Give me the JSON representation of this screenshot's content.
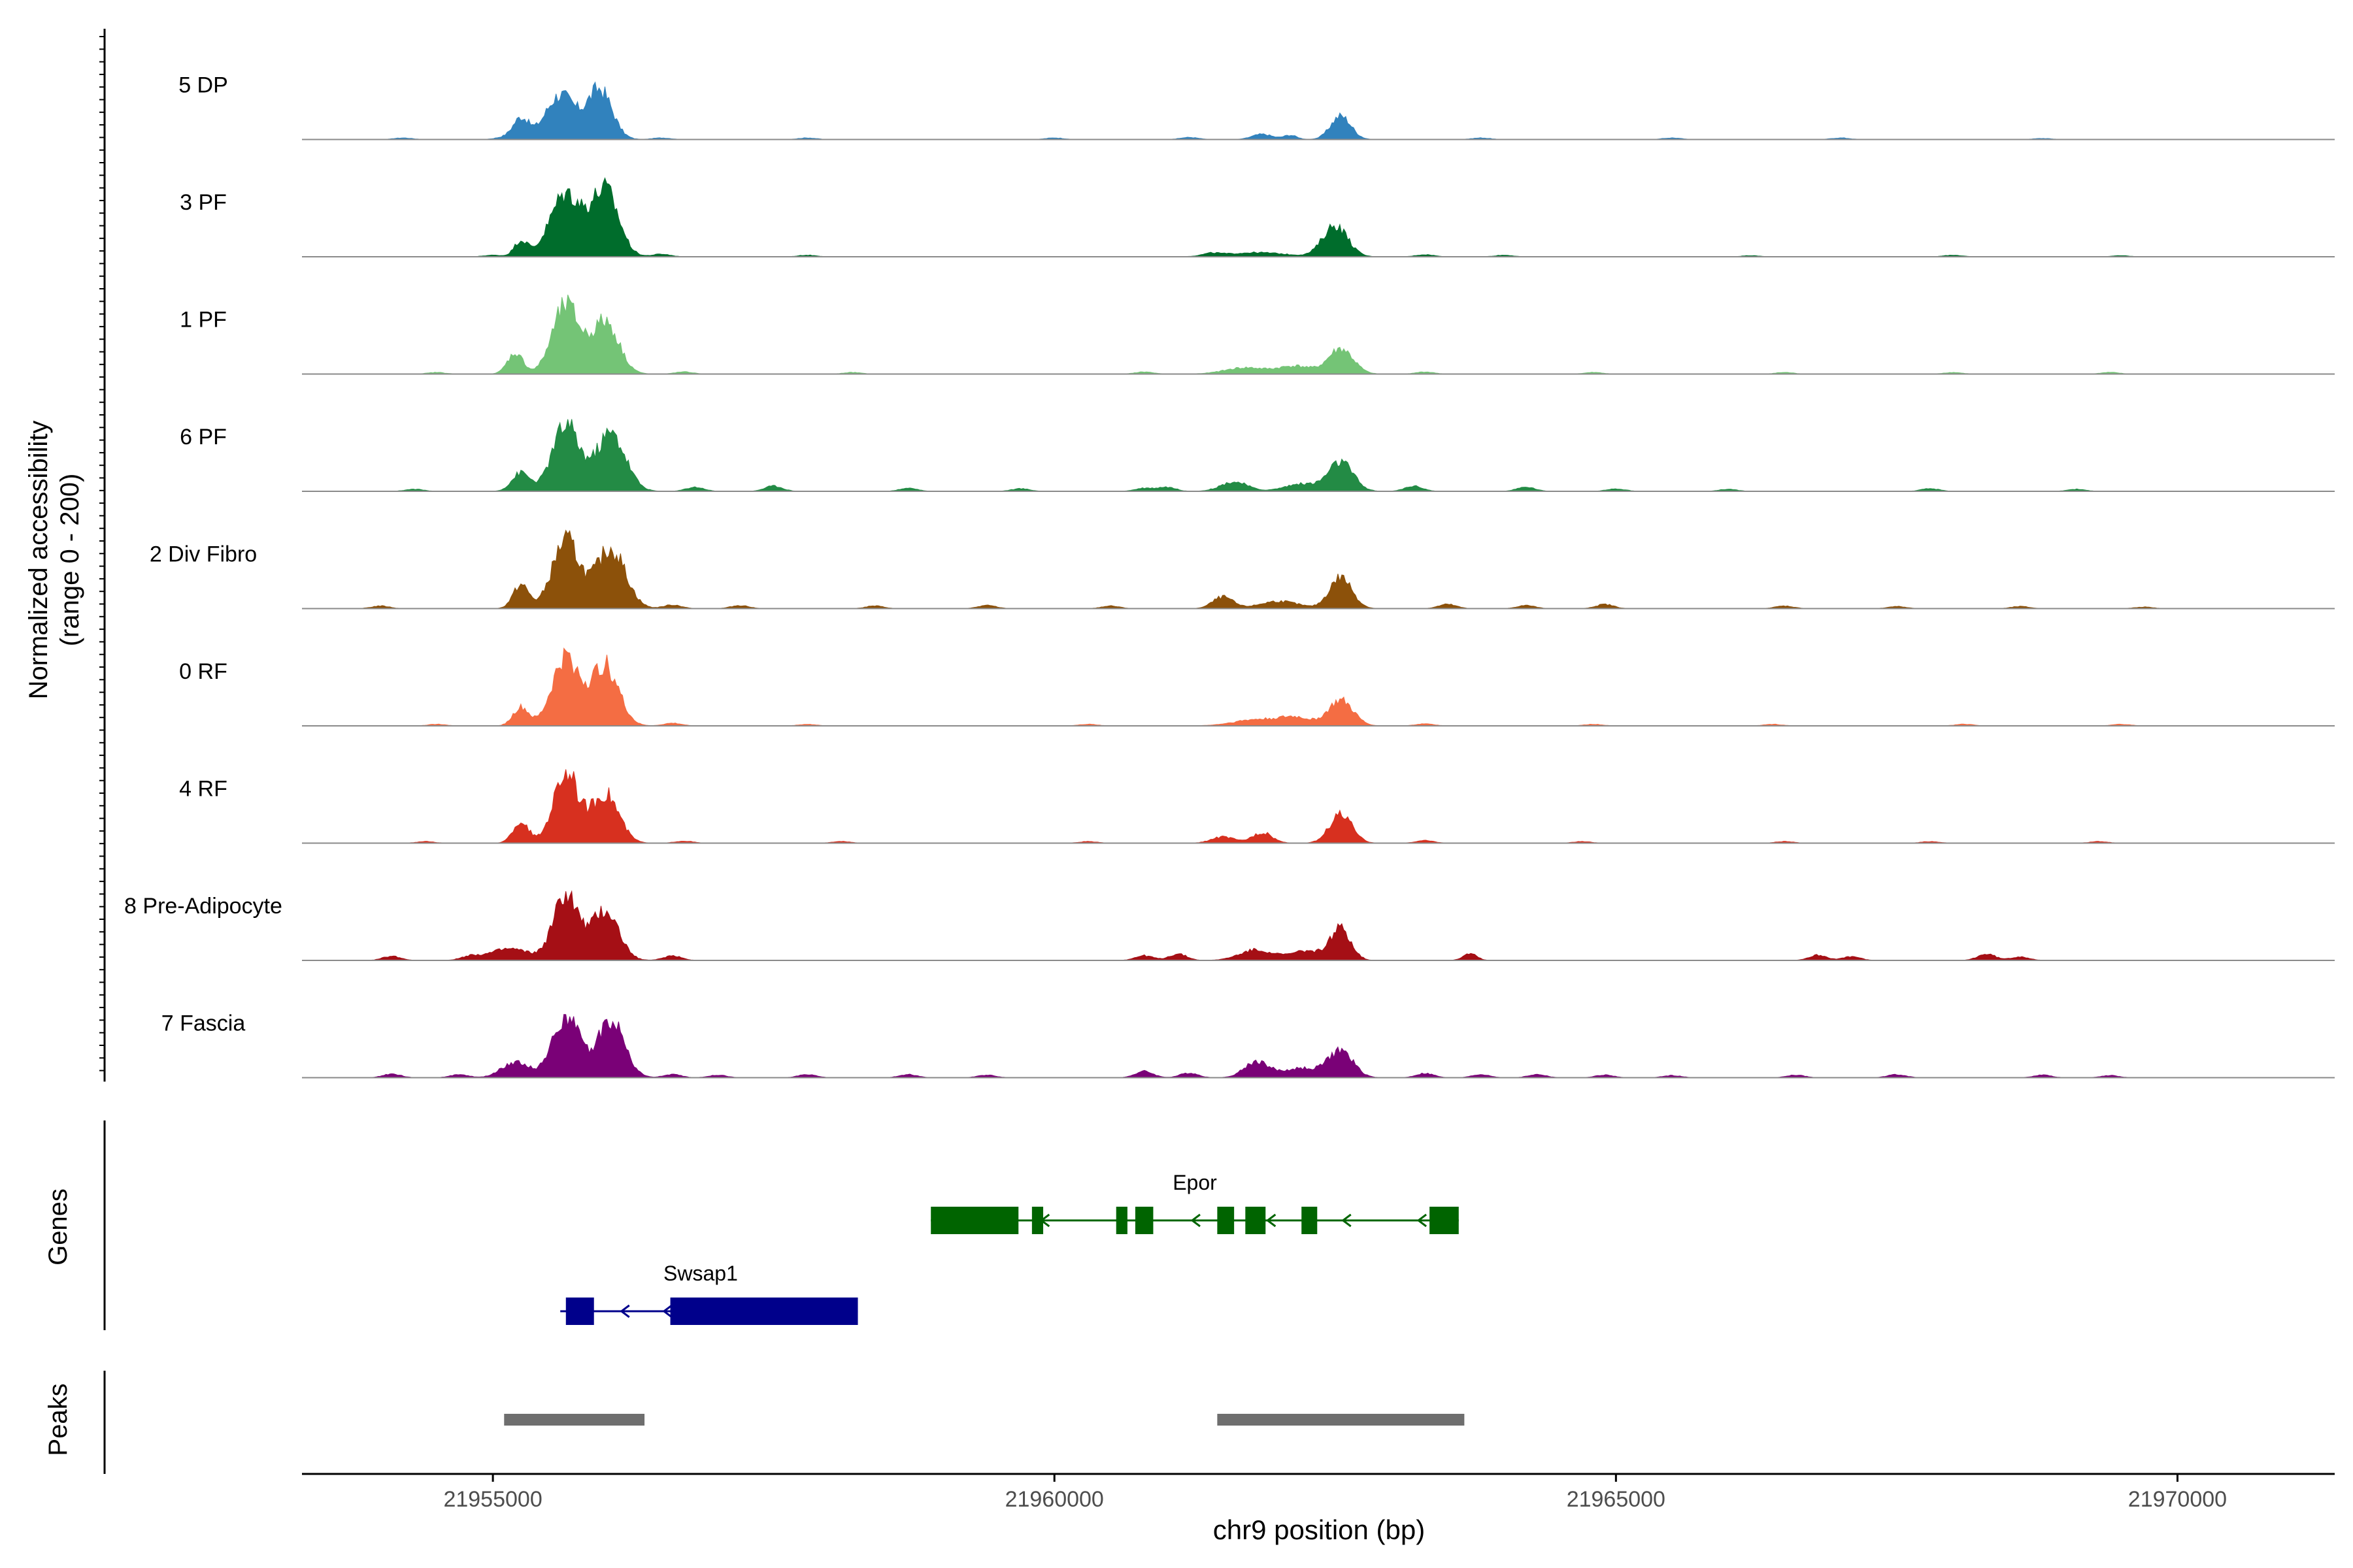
{
  "chart_data": {
    "type": "area",
    "title": "",
    "ylabel_line1": "Normalized accessibility",
    "ylabel_line2": "(range 0 - 200)",
    "xlabel": "chr9 position (bp)",
    "xlim": [
      21953300,
      21971400
    ],
    "xticks": [
      21955000,
      21960000,
      21965000,
      21970000
    ],
    "xtick_labels": [
      "21955000",
      "21960000",
      "21965000",
      "21970000"
    ],
    "ylim": [
      0,
      200
    ],
    "tracks": [
      {
        "name": "5 DP",
        "color": "#3182bd",
        "peaks": [
          [
            21955250,
            40,
            70
          ],
          [
            21955600,
            85,
            130
          ],
          [
            21955950,
            95,
            110
          ],
          [
            21961850,
            10,
            90
          ],
          [
            21962100,
            8,
            60
          ],
          [
            21962550,
            45,
            90
          ]
        ],
        "bumps": [
          [
            21954200,
            3
          ],
          [
            21955100,
            4
          ],
          [
            21956500,
            3
          ],
          [
            21957800,
            3
          ],
          [
            21960000,
            3
          ],
          [
            21961200,
            4
          ],
          [
            21963800,
            3
          ],
          [
            21965500,
            3
          ],
          [
            21967000,
            3
          ],
          [
            21968800,
            2
          ]
        ]
      },
      {
        "name": "3 PF",
        "color": "#006d2c",
        "peaks": [
          [
            21955250,
            30,
            60
          ],
          [
            21955650,
            120,
            140
          ],
          [
            21956000,
            125,
            120
          ],
          [
            21961800,
            8,
            260
          ],
          [
            21962500,
            60,
            110
          ]
        ],
        "bumps": [
          [
            21955000,
            3
          ],
          [
            21956500,
            5
          ],
          [
            21957800,
            3
          ],
          [
            21961400,
            5
          ],
          [
            21963300,
            4
          ],
          [
            21964000,
            3
          ],
          [
            21966200,
            2
          ],
          [
            21968000,
            3
          ],
          [
            21969500,
            2
          ]
        ]
      },
      {
        "name": "1 PF",
        "color": "#74c476",
        "peaks": [
          [
            21955200,
            40,
            70
          ],
          [
            21955650,
            130,
            120
          ],
          [
            21956000,
            100,
            120
          ],
          [
            21961700,
            12,
            180
          ],
          [
            21962150,
            15,
            150
          ],
          [
            21962550,
            48,
            110
          ]
        ],
        "bumps": [
          [
            21954500,
            3
          ],
          [
            21956700,
            4
          ],
          [
            21958200,
            3
          ],
          [
            21960800,
            4
          ],
          [
            21963300,
            4
          ],
          [
            21964800,
            3
          ],
          [
            21966500,
            3
          ],
          [
            21968000,
            3
          ],
          [
            21969400,
            3
          ]
        ]
      },
      {
        "name": "6 PF",
        "color": "#238b45",
        "peaks": [
          [
            21955250,
            35,
            80
          ],
          [
            21955650,
            125,
            120
          ],
          [
            21956050,
            110,
            130
          ],
          [
            21961600,
            18,
            120
          ],
          [
            21962200,
            14,
            150
          ],
          [
            21962550,
            55,
            110
          ]
        ],
        "bumps": [
          [
            21954300,
            4
          ],
          [
            21956800,
            8
          ],
          [
            21957500,
            10
          ],
          [
            21958700,
            6
          ],
          [
            21959700,
            5
          ],
          [
            21960800,
            6
          ],
          [
            21961000,
            8
          ],
          [
            21963200,
            10
          ],
          [
            21964200,
            8
          ],
          [
            21965000,
            5
          ],
          [
            21966000,
            4
          ],
          [
            21967800,
            5
          ],
          [
            21969100,
            4
          ]
        ]
      },
      {
        "name": "2 Div Fibro",
        "color": "#8c510a",
        "peaks": [
          [
            21955250,
            45,
            70
          ],
          [
            21955650,
            130,
            120
          ],
          [
            21956050,
            115,
            130
          ],
          [
            21961500,
            22,
            90
          ],
          [
            21962000,
            14,
            170
          ],
          [
            21962550,
            60,
            100
          ]
        ],
        "bumps": [
          [
            21954000,
            5
          ],
          [
            21956600,
            7
          ],
          [
            21957200,
            6
          ],
          [
            21958400,
            5
          ],
          [
            21959400,
            6
          ],
          [
            21960500,
            5
          ],
          [
            21963500,
            8
          ],
          [
            21964200,
            6
          ],
          [
            21964900,
            8
          ],
          [
            21966500,
            5
          ],
          [
            21967500,
            4
          ],
          [
            21968600,
            4
          ],
          [
            21969700,
            3
          ]
        ]
      },
      {
        "name": "0 RF",
        "color": "#f46d43",
        "peaks": [
          [
            21955250,
            35,
            70
          ],
          [
            21955650,
            130,
            120
          ],
          [
            21956000,
            115,
            120
          ],
          [
            21961800,
            12,
            200
          ],
          [
            21962150,
            15,
            140
          ],
          [
            21962550,
            48,
            110
          ]
        ],
        "bumps": [
          [
            21954500,
            3
          ],
          [
            21956600,
            5
          ],
          [
            21957800,
            3
          ],
          [
            21960300,
            3
          ],
          [
            21963300,
            4
          ],
          [
            21964800,
            3
          ],
          [
            21966400,
            3
          ],
          [
            21968100,
            3
          ],
          [
            21969500,
            3
          ]
        ]
      },
      {
        "name": "4 RF",
        "color": "#d7301f",
        "peaks": [
          [
            21955250,
            40,
            70
          ],
          [
            21955650,
            135,
            110
          ],
          [
            21956000,
            95,
            120
          ],
          [
            21961500,
            12,
            100
          ],
          [
            21961850,
            20,
            90
          ],
          [
            21962550,
            55,
            100
          ]
        ],
        "bumps": [
          [
            21954400,
            3
          ],
          [
            21956700,
            4
          ],
          [
            21958100,
            3
          ],
          [
            21960300,
            3
          ],
          [
            21963300,
            5
          ],
          [
            21964700,
            3
          ],
          [
            21966500,
            3
          ],
          [
            21967800,
            3
          ],
          [
            21969300,
            3
          ]
        ]
      },
      {
        "name": "8 Pre-Adipocyte",
        "color": "#a50f15",
        "peaks": [
          [
            21955150,
            22,
            180
          ],
          [
            21955650,
            125,
            110
          ],
          [
            21956000,
            95,
            120
          ],
          [
            21961800,
            20,
            150
          ],
          [
            21962250,
            18,
            140
          ],
          [
            21962550,
            60,
            90
          ],
          [
            21963700,
            14,
            60
          ]
        ],
        "bumps": [
          [
            21954100,
            8
          ],
          [
            21954800,
            7
          ],
          [
            21956600,
            9
          ],
          [
            21960800,
            9
          ],
          [
            21961100,
            12
          ],
          [
            21966800,
            10
          ],
          [
            21967100,
            7
          ],
          [
            21968300,
            12
          ],
          [
            21968600,
            7
          ]
        ]
      },
      {
        "name": "7 Fascia",
        "color": "#7a0177",
        "peaks": [
          [
            21955200,
            30,
            120
          ],
          [
            21955650,
            118,
            120
          ],
          [
            21956050,
            110,
            120
          ],
          [
            21961800,
            30,
            110
          ],
          [
            21962200,
            18,
            160
          ],
          [
            21962550,
            50,
            110
          ]
        ],
        "bumps": [
          [
            21954100,
            7
          ],
          [
            21954700,
            6
          ],
          [
            21956600,
            6
          ],
          [
            21957000,
            5
          ],
          [
            21957800,
            6
          ],
          [
            21958700,
            6
          ],
          [
            21959400,
            5
          ],
          [
            21960800,
            12
          ],
          [
            21961200,
            9
          ],
          [
            21963300,
            8
          ],
          [
            21963800,
            6
          ],
          [
            21964300,
            6
          ],
          [
            21964900,
            5
          ],
          [
            21965500,
            4
          ],
          [
            21966600,
            5
          ],
          [
            21967500,
            6
          ],
          [
            21968800,
            5
          ],
          [
            21969400,
            4
          ]
        ]
      }
    ],
    "genes_label": "Genes",
    "genes": [
      {
        "name": "Epor",
        "color": "#006400",
        "start": 21958900,
        "end": 21963600,
        "strand": "-",
        "exons": [
          [
            21958900,
            21959680
          ],
          [
            21959800,
            21959900
          ],
          [
            21960550,
            21960650
          ],
          [
            21960720,
            21960880
          ],
          [
            21961450,
            21961600
          ],
          [
            21961700,
            21961880
          ],
          [
            21962200,
            21962340
          ],
          [
            21963340,
            21963600
          ]
        ]
      },
      {
        "name": "Swsap1",
        "color": "#00008b",
        "start": 21955600,
        "end": 21958250,
        "strand": "-",
        "exons": [
          [
            21955650,
            21955900
          ],
          [
            21956580,
            21958250
          ]
        ]
      }
    ],
    "peaks_label": "Peaks",
    "peak_color": "#6e6e6e",
    "peak_regions": [
      [
        21955100,
        21956350
      ],
      [
        21961450,
        21963650
      ]
    ]
  }
}
